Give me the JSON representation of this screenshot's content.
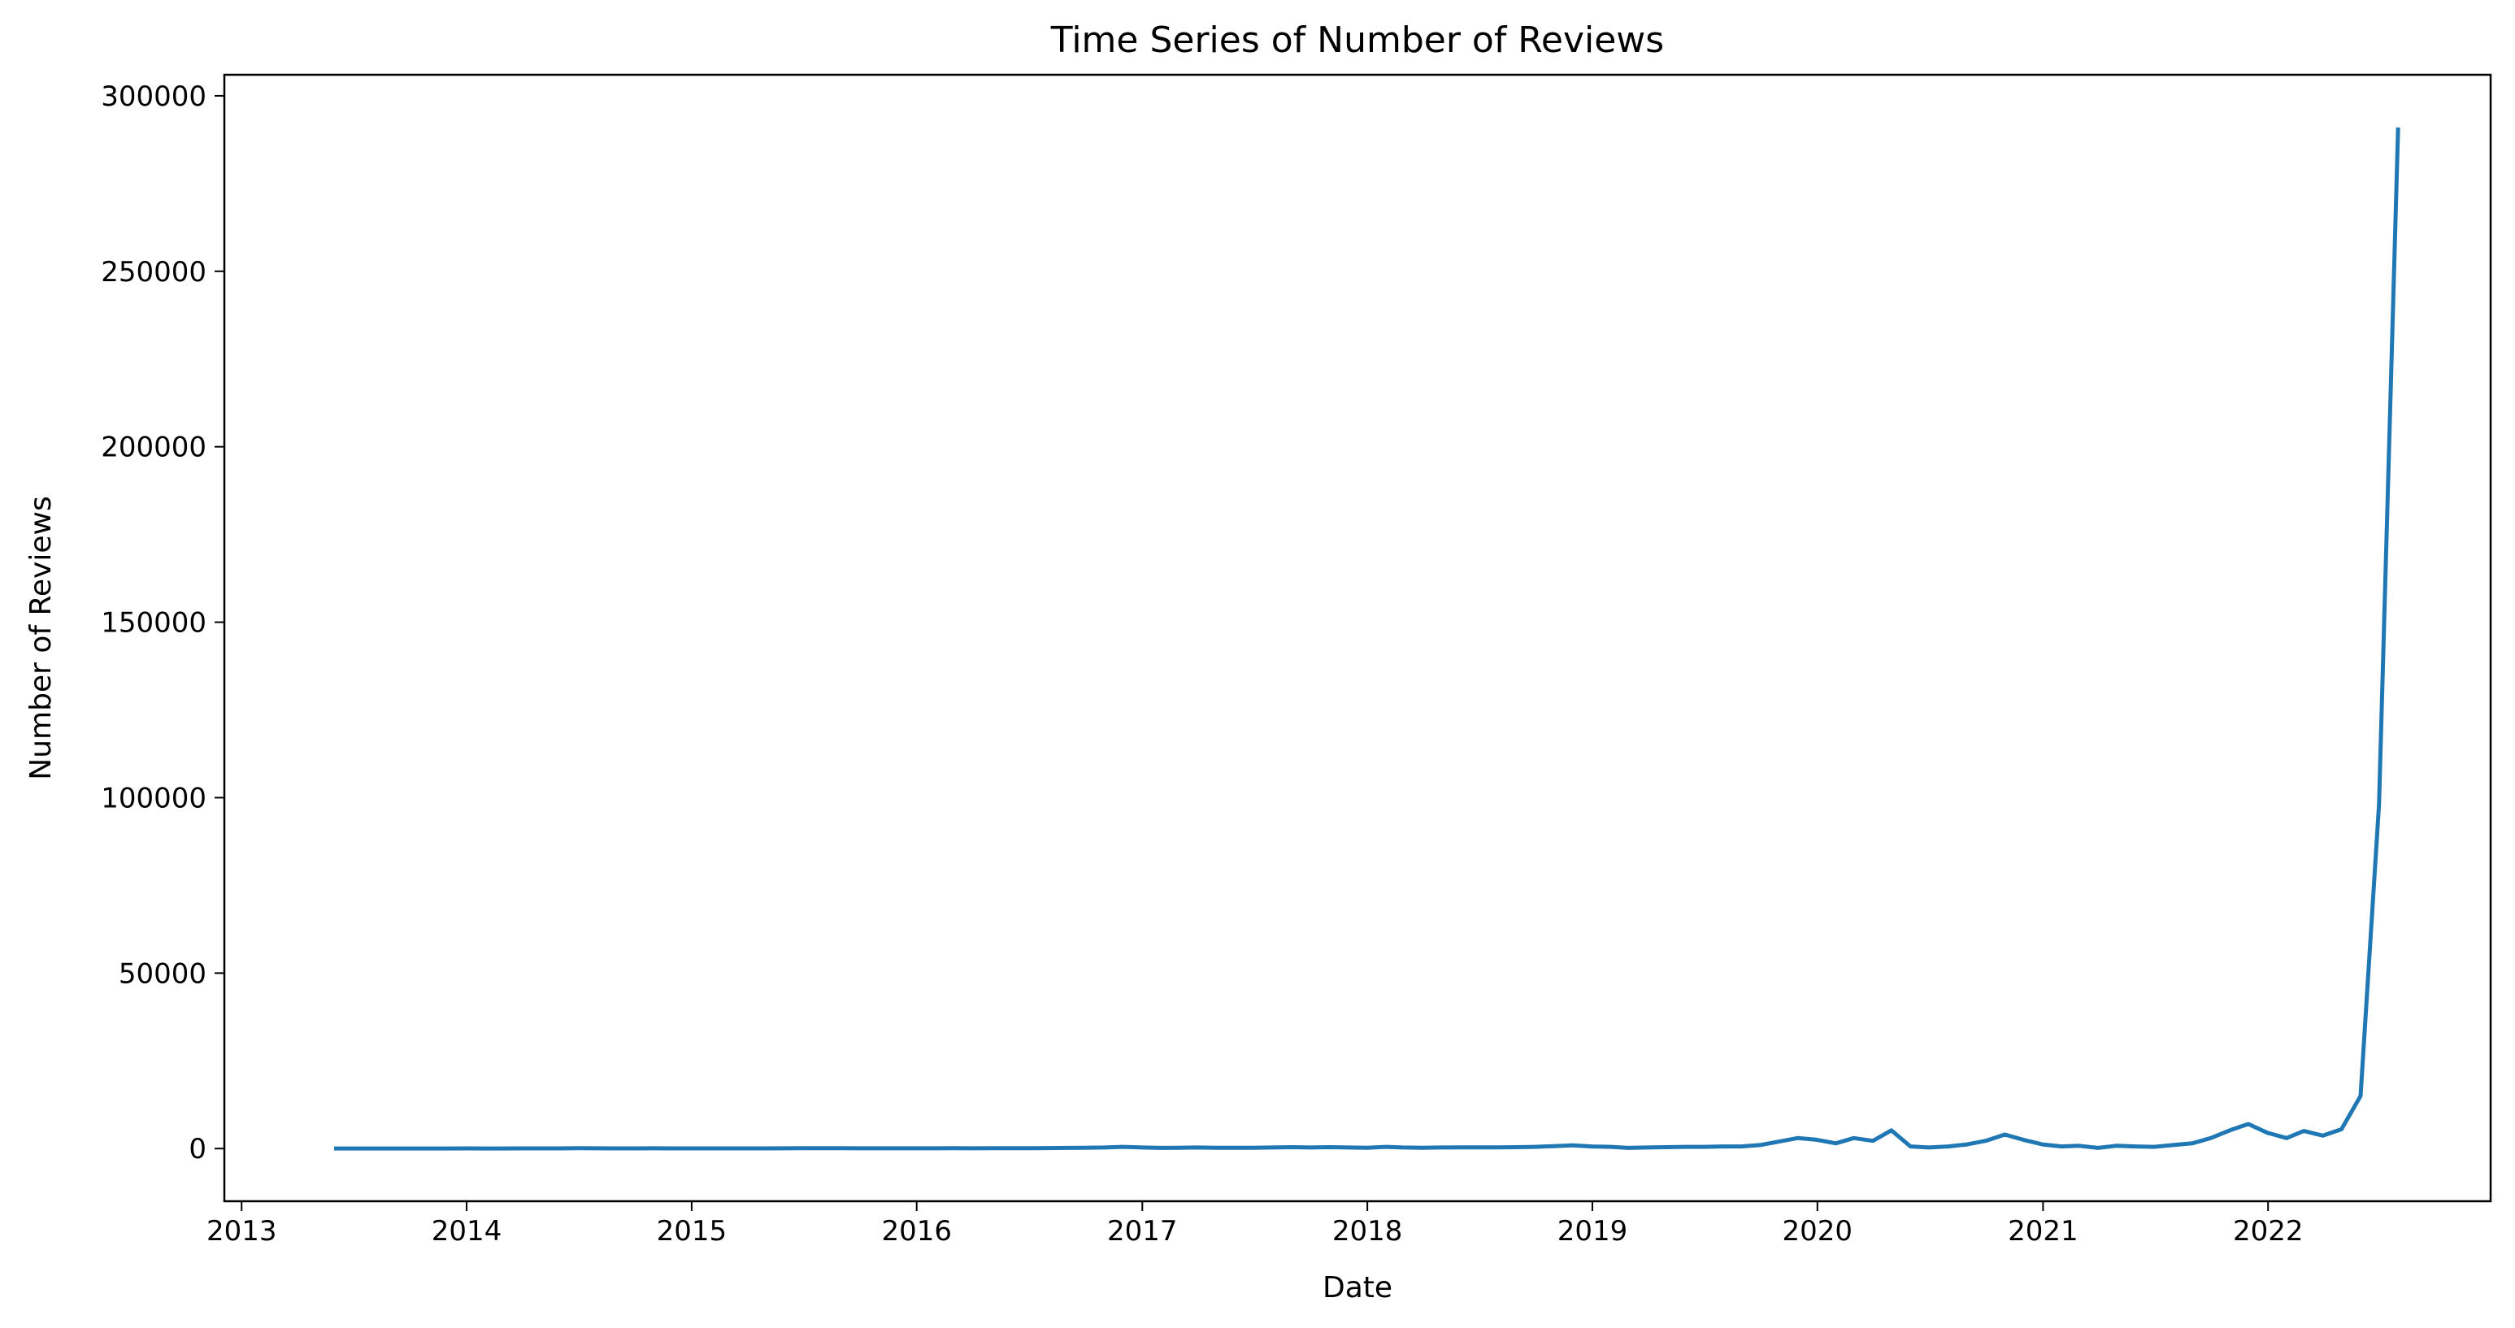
{
  "chart_data": {
    "type": "line",
    "title": "Time Series of Number of Reviews",
    "xlabel": "Date",
    "ylabel": "Number of Reviews",
    "xlim": [
      "2012-12-04",
      "2022-12-28"
    ],
    "ylim": [
      -15000,
      306000
    ],
    "x_ticks": [
      "2013",
      "2014",
      "2015",
      "2016",
      "2017",
      "2018",
      "2019",
      "2020",
      "2021",
      "2022"
    ],
    "y_ticks": [
      0,
      50000,
      100000,
      150000,
      200000,
      250000,
      300000
    ],
    "grid": false,
    "legend": "none",
    "colors": {
      "series": "#1f77b4",
      "axes": "#000000",
      "background": "#ffffff"
    },
    "series": [
      {
        "x": [
          "2013-05-31",
          "2013-06-30",
          "2013-07-31",
          "2013-08-31",
          "2013-09-30",
          "2013-10-31",
          "2013-11-30",
          "2013-12-31",
          "2014-01-31",
          "2014-02-28",
          "2014-03-31",
          "2014-04-30",
          "2014-05-31",
          "2014-06-30",
          "2014-07-31",
          "2014-08-31",
          "2014-09-30",
          "2014-10-31",
          "2014-11-30",
          "2014-12-31",
          "2015-01-31",
          "2015-02-28",
          "2015-03-31",
          "2015-04-30",
          "2015-05-31",
          "2015-06-30",
          "2015-07-31",
          "2015-08-31",
          "2015-09-30",
          "2015-10-31",
          "2015-11-30",
          "2015-12-31",
          "2016-01-31",
          "2016-02-29",
          "2016-03-31",
          "2016-04-30",
          "2016-05-31",
          "2016-06-30",
          "2016-07-31",
          "2016-08-31",
          "2016-09-30",
          "2016-10-31",
          "2016-11-30",
          "2016-12-31",
          "2017-01-31",
          "2017-02-28",
          "2017-03-31",
          "2017-04-30",
          "2017-05-31",
          "2017-06-30",
          "2017-07-31",
          "2017-08-31",
          "2017-09-30",
          "2017-10-31",
          "2017-11-30",
          "2017-12-31",
          "2018-01-31",
          "2018-02-28",
          "2018-03-31",
          "2018-04-30",
          "2018-05-31",
          "2018-06-30",
          "2018-07-31",
          "2018-08-31",
          "2018-09-30",
          "2018-10-31",
          "2018-11-30",
          "2018-12-31",
          "2019-01-31",
          "2019-02-28",
          "2019-03-31",
          "2019-04-30",
          "2019-05-31",
          "2019-06-30",
          "2019-07-31",
          "2019-08-31",
          "2019-09-30",
          "2019-10-31",
          "2019-11-30",
          "2019-12-31",
          "2020-01-31",
          "2020-02-29",
          "2020-03-31",
          "2020-04-30",
          "2020-05-31",
          "2020-06-30",
          "2020-07-31",
          "2020-08-31",
          "2020-09-30",
          "2020-10-31",
          "2020-11-30",
          "2020-12-31",
          "2021-01-31",
          "2021-02-28",
          "2021-03-31",
          "2021-04-30",
          "2021-05-31",
          "2021-06-30",
          "2021-07-31",
          "2021-08-31",
          "2021-09-30",
          "2021-10-31",
          "2021-11-30",
          "2021-12-31",
          "2022-01-31",
          "2022-02-28",
          "2022-03-31",
          "2022-04-30",
          "2022-05-31",
          "2022-06-30",
          "2022-07-31"
        ],
        "values": [
          20,
          25,
          30,
          30,
          35,
          40,
          40,
          45,
          40,
          40,
          45,
          50,
          60,
          120,
          80,
          60,
          60,
          70,
          60,
          60,
          60,
          60,
          60,
          60,
          80,
          90,
          100,
          100,
          80,
          70,
          70,
          80,
          80,
          90,
          80,
          100,
          120,
          110,
          150,
          200,
          250,
          300,
          500,
          300,
          200,
          250,
          300,
          250,
          250,
          250,
          300,
          400,
          300,
          400,
          300,
          250,
          500,
          300,
          250,
          300,
          350,
          350,
          350,
          400,
          500,
          700,
          900,
          600,
          500,
          200,
          300,
          400,
          500,
          500,
          600,
          600,
          1000,
          2000,
          3000,
          2500,
          1500,
          3000,
          2200,
          5200,
          600,
          300,
          600,
          1200,
          2200,
          4000,
          2500,
          1200,
          600,
          800,
          200,
          800,
          600,
          500,
          1000,
          1500,
          3000,
          5200,
          7000,
          4500,
          3000,
          5000,
          3700,
          5500,
          15000,
          98000,
          291000
        ]
      }
    ]
  }
}
